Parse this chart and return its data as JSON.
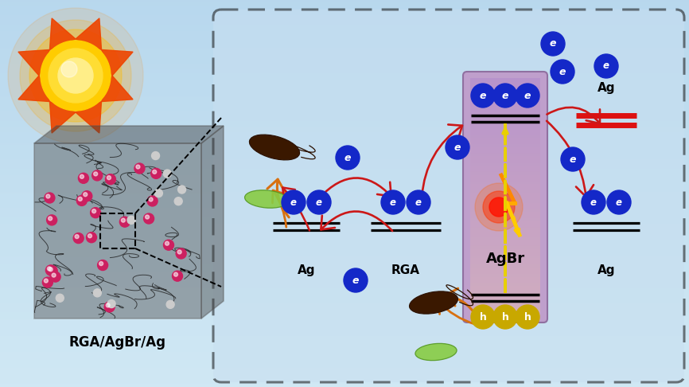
{
  "bg_top": "#b8d8ee",
  "bg_bottom": "#d0e8f4",
  "box_fill": "#c8dff0",
  "agbr_fill": "#c8a8d8",
  "electron_color": "#1428c8",
  "hole_color": "#c8a800",
  "red_arrow": "#cc1818",
  "orange_arrow": "#d87010",
  "yellow_line": "#e8d000",
  "energy_line": "#111111",
  "label_composite": "RGA/AgBr/Ag",
  "label_Ag": "Ag",
  "label_RGA": "RGA",
  "label_AgBr": "AgBr"
}
